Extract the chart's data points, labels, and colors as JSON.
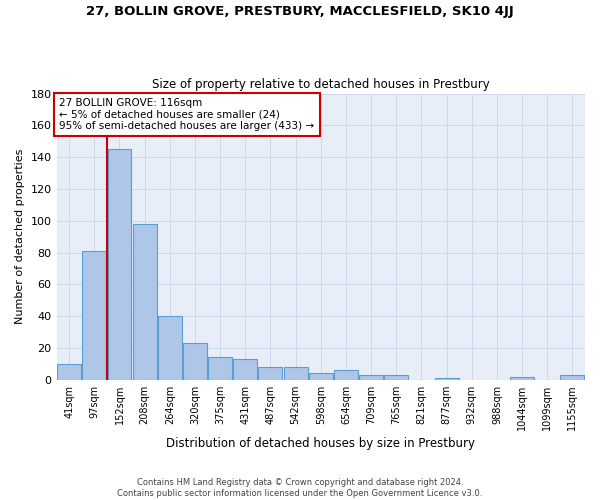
{
  "title1": "27, BOLLIN GROVE, PRESTBURY, MACCLESFIELD, SK10 4JJ",
  "title2": "Size of property relative to detached houses in Prestbury",
  "xlabel": "Distribution of detached houses by size in Prestbury",
  "ylabel": "Number of detached properties",
  "categories": [
    "41sqm",
    "97sqm",
    "152sqm",
    "208sqm",
    "264sqm",
    "320sqm",
    "375sqm",
    "431sqm",
    "487sqm",
    "542sqm",
    "598sqm",
    "654sqm",
    "709sqm",
    "765sqm",
    "821sqm",
    "877sqm",
    "932sqm",
    "988sqm",
    "1044sqm",
    "1099sqm",
    "1155sqm"
  ],
  "values": [
    10,
    81,
    145,
    98,
    40,
    23,
    14,
    13,
    8,
    8,
    4,
    6,
    3,
    3,
    0,
    1,
    0,
    0,
    2,
    0,
    3
  ],
  "bar_color": "#aec6e8",
  "bar_edge_color": "#5a9fd4",
  "annotation_line1": "27 BOLLIN GROVE: 116sqm",
  "annotation_line2": "← 5% of detached houses are smaller (24)",
  "annotation_line3": "95% of semi-detached houses are larger (433) →",
  "annotation_box_color": "#ffffff",
  "annotation_box_edge": "#cc0000",
  "vline_color": "#cc0000",
  "vline_x": 1.5,
  "ylim": [
    0,
    180
  ],
  "yticks": [
    0,
    20,
    40,
    60,
    80,
    100,
    120,
    140,
    160,
    180
  ],
  "grid_color": "#cdd8ea",
  "background_color": "#e8eef8",
  "footer1": "Contains HM Land Registry data © Crown copyright and database right 2024.",
  "footer2": "Contains public sector information licensed under the Open Government Licence v3.0."
}
